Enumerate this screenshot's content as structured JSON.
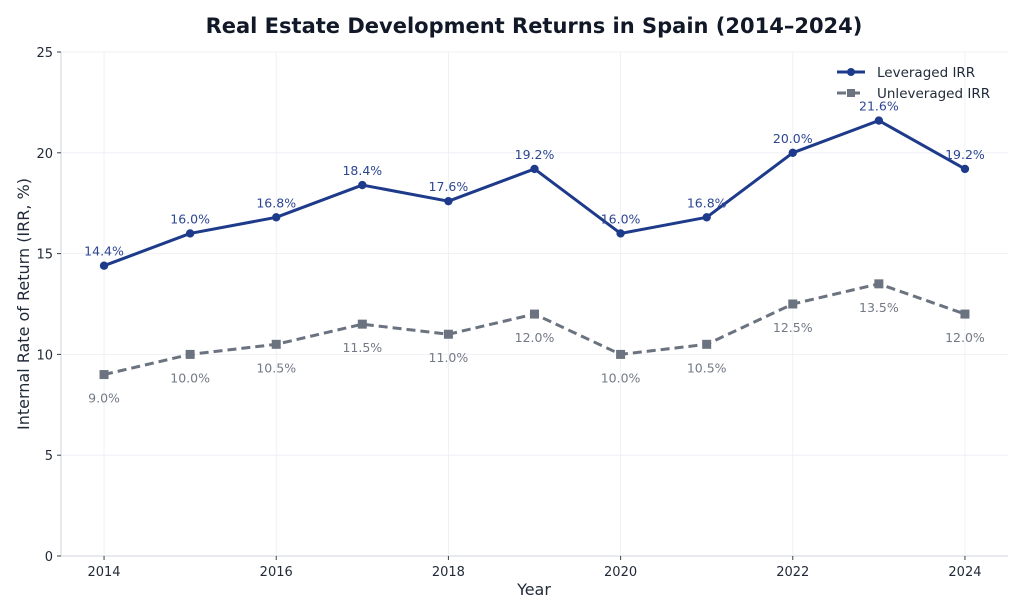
{
  "chart_data": {
    "type": "line",
    "title": "Real Estate Development Returns in Spain (2014–2024)",
    "xlabel": "Year",
    "ylabel": "Internal Rate of Return (IRR, %)",
    "x": [
      2014,
      2015,
      2016,
      2017,
      2018,
      2019,
      2020,
      2021,
      2022,
      2023,
      2024
    ],
    "xlim": [
      2013.5,
      2024.5
    ],
    "ylim": [
      0,
      25
    ],
    "xticks": [
      2014,
      2016,
      2018,
      2020,
      2022,
      2024
    ],
    "xtick_labels": [
      "2014",
      "2016",
      "2018",
      "2020",
      "2022",
      "2024"
    ],
    "yticks": [
      0,
      5,
      10,
      15,
      20,
      25
    ],
    "ytick_labels": [
      "0",
      "5",
      "10",
      "15",
      "20",
      "25"
    ],
    "grid": true,
    "legend_position": "top-right",
    "series": [
      {
        "name": "Leveraged IRR",
        "color": "#1e3a8a",
        "line_style": "solid",
        "marker": "circle",
        "label_position": "above",
        "values": [
          14.4,
          16.0,
          16.8,
          18.4,
          17.6,
          19.2,
          16.0,
          16.8,
          20.0,
          21.6,
          19.2
        ],
        "labels": [
          "14.4%",
          "16.0%",
          "16.8%",
          "18.4%",
          "17.6%",
          "19.2%",
          "16.0%",
          "16.8%",
          "20.0%",
          "21.6%",
          "19.2%"
        ]
      },
      {
        "name": "Unleveraged IRR",
        "color": "#6b7280",
        "line_style": "dashed",
        "marker": "square",
        "label_position": "below",
        "values": [
          9.0,
          10.0,
          10.5,
          11.5,
          11.0,
          12.0,
          10.0,
          10.5,
          12.5,
          13.5,
          12.0
        ],
        "labels": [
          "9.0%",
          "10.0%",
          "10.5%",
          "11.5%",
          "11.0%",
          "12.0%",
          "10.0%",
          "10.5%",
          "12.5%",
          "13.5%",
          "12.0%"
        ]
      }
    ]
  }
}
